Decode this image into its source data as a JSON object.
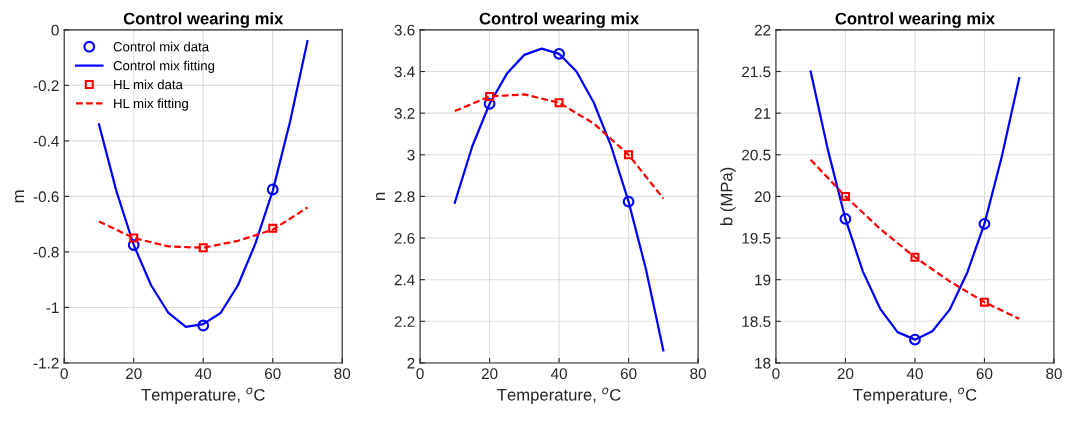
{
  "chart_data": [
    {
      "type": "line",
      "title": "Control wearing mix",
      "xlabel": "Temperature, $^{o}$C",
      "ylabel": "m",
      "xlim": [
        0,
        80
      ],
      "xticks": [
        0,
        20,
        40,
        60,
        80
      ],
      "ylim": [
        -1.2,
        0
      ],
      "yticks": [
        -1.2,
        -1,
        -0.8,
        -0.6,
        -0.4,
        -0.2,
        0
      ],
      "grid": true,
      "legend": "top left",
      "series": [
        {
          "name": "Control mix data",
          "type": "scatter",
          "marker": "circle",
          "color": "#0000ff",
          "x": [
            20,
            40,
            60
          ],
          "values": [
            -0.775,
            -1.065,
            -0.575
          ]
        },
        {
          "name": "Control mix fitting",
          "line_style": "solid",
          "color": "#0000ff",
          "x": [
            10,
            15,
            20,
            25,
            30,
            35,
            40,
            45,
            50,
            55,
            60,
            65,
            70
          ],
          "values": [
            -0.34,
            -0.58,
            -0.775,
            -0.92,
            -1.02,
            -1.07,
            -1.06,
            -1.02,
            -0.92,
            -0.77,
            -0.58,
            -0.33,
            -0.04
          ]
        },
        {
          "name": "HL mix data",
          "type": "scatter",
          "marker": "square",
          "color": "#ff0000",
          "x": [
            20,
            40,
            60
          ],
          "values": [
            -0.75,
            -0.785,
            -0.715
          ]
        },
        {
          "name": "HL mix fitting",
          "line_style": "dashed",
          "color": "#ff0000",
          "x": [
            10,
            20,
            30,
            40,
            50,
            60,
            70
          ],
          "values": [
            -0.69,
            -0.75,
            -0.78,
            -0.785,
            -0.76,
            -0.72,
            -0.64
          ]
        }
      ]
    },
    {
      "type": "line",
      "title": "Control wearing mix",
      "xlabel": "Temperature, $^{o}$C",
      "ylabel": "n",
      "xlim": [
        0,
        80
      ],
      "xticks": [
        0,
        20,
        40,
        60,
        80
      ],
      "ylim": [
        2,
        3.6
      ],
      "yticks": [
        2,
        2.2,
        2.4,
        2.6,
        2.8,
        3,
        3.2,
        3.4,
        3.6
      ],
      "grid": true,
      "series": [
        {
          "type": "scatter",
          "marker": "circle",
          "color": "#0000ff",
          "x": [
            20,
            40,
            60
          ],
          "values": [
            3.245,
            3.485,
            2.775
          ]
        },
        {
          "line_style": "solid",
          "color": "#0000ff",
          "x": [
            10,
            15,
            20,
            25,
            30,
            35,
            40,
            45,
            50,
            55,
            60,
            65,
            70
          ],
          "values": [
            2.77,
            3.04,
            3.245,
            3.39,
            3.48,
            3.51,
            3.485,
            3.4,
            3.25,
            3.04,
            2.775,
            2.45,
            2.06
          ]
        },
        {
          "type": "scatter",
          "marker": "square",
          "color": "#ff0000",
          "x": [
            20,
            40,
            60
          ],
          "values": [
            3.28,
            3.25,
            3.0
          ]
        },
        {
          "line_style": "dashed",
          "color": "#ff0000",
          "x": [
            10,
            20,
            30,
            40,
            50,
            60,
            70
          ],
          "values": [
            3.21,
            3.28,
            3.29,
            3.25,
            3.15,
            3.0,
            2.79
          ]
        }
      ]
    },
    {
      "type": "line",
      "title": "Control wearing mix",
      "xlabel": "Temperature, $^{o}$C",
      "ylabel": "b (MPa)",
      "xlim": [
        0,
        80
      ],
      "xticks": [
        0,
        20,
        40,
        60,
        80
      ],
      "ylim": [
        18,
        22
      ],
      "yticks": [
        18,
        18.5,
        19,
        19.5,
        20,
        20.5,
        21,
        21.5,
        22
      ],
      "grid": true,
      "series": [
        {
          "type": "scatter",
          "marker": "circle",
          "color": "#0000ff",
          "x": [
            20,
            40,
            60
          ],
          "values": [
            19.73,
            18.28,
            19.67
          ]
        },
        {
          "line_style": "solid",
          "color": "#0000ff",
          "x": [
            10,
            15,
            20,
            25,
            30,
            35,
            40,
            45,
            50,
            55,
            60,
            65,
            70
          ],
          "values": [
            21.5,
            20.55,
            19.73,
            19.1,
            18.65,
            18.37,
            18.28,
            18.38,
            18.64,
            19.08,
            19.67,
            20.48,
            21.42
          ]
        },
        {
          "type": "scatter",
          "marker": "square",
          "color": "#ff0000",
          "x": [
            20,
            40,
            60
          ],
          "values": [
            20.0,
            19.27,
            18.73
          ]
        },
        {
          "line_style": "dashed",
          "color": "#ff0000",
          "x": [
            10,
            20,
            30,
            40,
            50,
            60,
            70
          ],
          "values": [
            20.44,
            20.0,
            19.61,
            19.27,
            18.98,
            18.73,
            18.53
          ]
        }
      ]
    }
  ]
}
